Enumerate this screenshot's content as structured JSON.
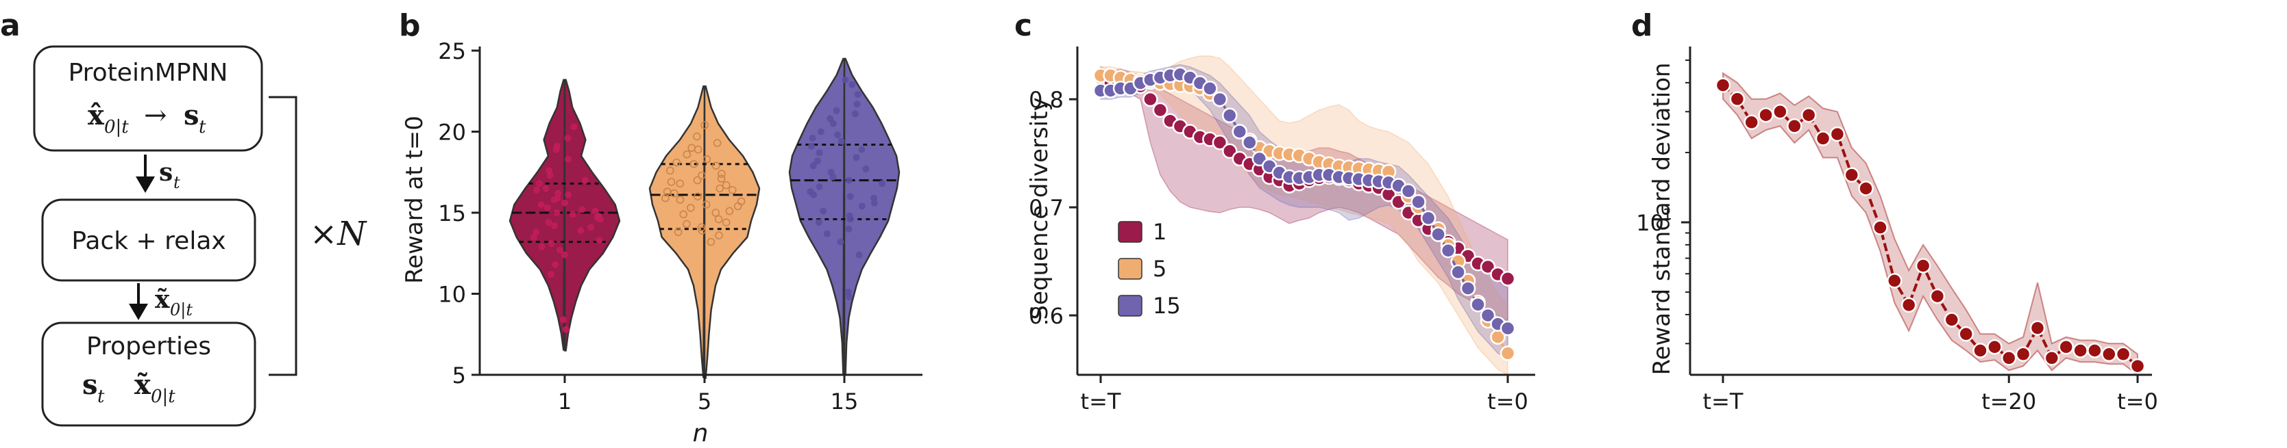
{
  "panel_letters": [
    "a",
    "b",
    "c",
    "d"
  ],
  "colors": {
    "n1": "#9b1b4a",
    "n5": "#f0ad72",
    "n15": "#6f64ad",
    "panel_d": "#9b1010"
  },
  "panel_a": {
    "box1_title": "ProteinMPNN",
    "box1_formula_lhs": "x̂",
    "box1_formula_sub": "0|t",
    "box1_formula_arrow": "→",
    "box1_formula_rhs": "s",
    "box1_formula_rhs_sub": "t",
    "arrow1_label": "s",
    "arrow1_sub": "t",
    "box2_title": "Pack + relax",
    "arrow2_label": "x̃",
    "arrow2_sub": "0|t",
    "box3_title": "Properties",
    "box3_item1": "s",
    "box3_item1_sub": "t",
    "box3_item2": "x̃",
    "box3_item2_sub": "0|t",
    "repeat_label": "×N"
  },
  "chart_data": [
    {
      "panel": "b",
      "type": "violin",
      "title": "",
      "xlabel": "n",
      "ylabel": "Reward at t=0",
      "ylim": [
        5,
        25
      ],
      "yticks": [
        5,
        10,
        15,
        20,
        25
      ],
      "categories": [
        "1",
        "5",
        "15"
      ],
      "series": [
        {
          "name": "1",
          "min": 6.5,
          "max": 23.2,
          "q1": 13.2,
          "median": 15.0,
          "q3": 16.8,
          "profile": [
            [
              6.5,
              0.02
            ],
            [
              7.5,
              0.06
            ],
            [
              8.5,
              0.12
            ],
            [
              9.5,
              0.2
            ],
            [
              10.5,
              0.3
            ],
            [
              11.5,
              0.45
            ],
            [
              12.5,
              0.7
            ],
            [
              13.5,
              0.88
            ],
            [
              14.5,
              1.0
            ],
            [
              15.5,
              0.92
            ],
            [
              16.5,
              0.72
            ],
            [
              17.5,
              0.5
            ],
            [
              18.5,
              0.3
            ],
            [
              19.5,
              0.38
            ],
            [
              20.5,
              0.28
            ],
            [
              21.5,
              0.14
            ],
            [
              22.5,
              0.08
            ],
            [
              23.2,
              0.02
            ]
          ],
          "points": [
            15.1,
            14.8,
            13.5,
            16.2,
            17.0,
            12.9,
            14.2,
            15.6,
            18.3,
            19.1,
            13.8,
            14.6,
            15.9,
            16.5,
            12.4,
            11.8,
            17.6,
            15.2,
            14.4,
            13.1,
            16.8,
            20.3,
            15.5,
            14.1,
            12.7,
            18.9,
            16.1,
            15.8,
            13.9,
            14.9,
            11.2,
            17.3,
            15.0,
            16.4,
            13.3,
            8.4,
            7.8,
            19.6,
            14.7,
            15.3
          ]
        },
        {
          "name": "5",
          "min": 4.8,
          "max": 22.8,
          "q1": 14.0,
          "median": 16.1,
          "q3": 18.0,
          "profile": [
            [
              4.8,
              0.02
            ],
            [
              6.0,
              0.05
            ],
            [
              7.5,
              0.08
            ],
            [
              9.0,
              0.12
            ],
            [
              10.5,
              0.2
            ],
            [
              11.5,
              0.3
            ],
            [
              12.5,
              0.52
            ],
            [
              13.5,
              0.78
            ],
            [
              14.5,
              0.85
            ],
            [
              15.5,
              0.95
            ],
            [
              16.5,
              1.0
            ],
            [
              17.5,
              0.88
            ],
            [
              18.5,
              0.7
            ],
            [
              19.5,
              0.45
            ],
            [
              20.5,
              0.25
            ],
            [
              21.5,
              0.12
            ],
            [
              22.8,
              0.02
            ]
          ],
          "points": [
            16.2,
            15.1,
            17.4,
            18.1,
            14.3,
            13.8,
            16.7,
            19.0,
            15.5,
            17.9,
            14.9,
            16.0,
            18.6,
            13.2,
            15.8,
            17.1,
            16.4,
            19.7,
            14.6,
            15.3,
            16.9,
            18.3,
            13.9,
            17.6,
            15.0,
            16.5,
            20.4,
            14.1,
            17.0,
            15.7,
            18.9,
            16.3,
            14.4,
            19.3,
            15.9,
            17.3,
            16.8,
            13.6,
            18.0,
            15.4
          ]
        },
        {
          "name": "15",
          "min": 5.0,
          "max": 24.5,
          "q1": 14.6,
          "median": 17.0,
          "q3": 19.2,
          "profile": [
            [
              5.0,
              0.02
            ],
            [
              7.0,
              0.04
            ],
            [
              8.5,
              0.08
            ],
            [
              9.5,
              0.14
            ],
            [
              10.5,
              0.22
            ],
            [
              11.5,
              0.32
            ],
            [
              12.5,
              0.48
            ],
            [
              13.5,
              0.65
            ],
            [
              14.5,
              0.8
            ],
            [
              15.5,
              0.88
            ],
            [
              16.5,
              0.96
            ],
            [
              17.5,
              1.0
            ],
            [
              18.5,
              0.95
            ],
            [
              19.5,
              0.82
            ],
            [
              20.5,
              0.68
            ],
            [
              21.5,
              0.52
            ],
            [
              22.5,
              0.32
            ],
            [
              23.5,
              0.14
            ],
            [
              24.5,
              0.02
            ]
          ],
          "points": [
            17.2,
            15.4,
            19.8,
            21.1,
            14.0,
            16.3,
            18.7,
            22.3,
            13.2,
            17.9,
            20.5,
            15.9,
            16.8,
            19.1,
            12.4,
            18.2,
            14.8,
            21.7,
            16.1,
            17.5,
            20.0,
            15.1,
            18.9,
            13.7,
            22.9,
            16.6,
            19.4,
            17.0,
            14.4,
            21.3,
            18.4,
            15.6,
            20.8,
            16.0,
            19.6,
            23.2,
            10.1,
            9.8,
            17.7,
            14.6
          ]
        }
      ]
    },
    {
      "panel": "c",
      "type": "line",
      "title": "",
      "xlabel": "",
      "ylabel": "Sequence diversity",
      "ylim": [
        0.545,
        0.845
      ],
      "yticks": [
        0.6,
        0.7,
        0.8
      ],
      "xticks": [
        "t=T",
        "t=0"
      ],
      "legend": [
        "1",
        "5",
        "15"
      ],
      "legend_position": "lower-left",
      "series": [
        {
          "name": "1",
          "values": [
            0.82,
            0.815,
            0.818,
            0.815,
            0.812,
            0.8,
            0.79,
            0.78,
            0.775,
            0.77,
            0.765,
            0.763,
            0.76,
            0.752,
            0.745,
            0.74,
            0.735,
            0.728,
            0.725,
            0.72,
            0.722,
            0.725,
            0.727,
            0.728,
            0.727,
            0.725,
            0.722,
            0.72,
            0.718,
            0.712,
            0.705,
            0.695,
            0.688,
            0.68,
            0.675,
            0.668,
            0.662,
            0.655,
            0.648,
            0.645,
            0.638,
            0.634
          ],
          "upper": [
            0.83,
            0.825,
            0.828,
            0.825,
            0.822,
            0.815,
            0.81,
            0.805,
            0.8,
            0.795,
            0.79,
            0.785,
            0.78,
            0.775,
            0.77,
            0.765,
            0.76,
            0.755,
            0.752,
            0.75,
            0.75,
            0.752,
            0.755,
            0.755,
            0.752,
            0.75,
            0.745,
            0.74,
            0.735,
            0.73,
            0.725,
            0.72,
            0.715,
            0.71,
            0.705,
            0.7,
            0.695,
            0.69,
            0.685,
            0.68,
            0.675,
            0.67
          ],
          "lower": [
            0.81,
            0.805,
            0.808,
            0.805,
            0.8,
            0.76,
            0.73,
            0.715,
            0.705,
            0.7,
            0.698,
            0.696,
            0.695,
            0.698,
            0.7,
            0.7,
            0.698,
            0.695,
            0.69,
            0.685,
            0.688,
            0.69,
            0.695,
            0.698,
            0.7,
            0.698,
            0.695,
            0.69,
            0.685,
            0.68,
            0.675,
            0.665,
            0.655,
            0.645,
            0.635,
            0.628,
            0.62,
            0.615,
            0.61,
            0.605,
            0.6,
            0.595
          ]
        },
        {
          "name": "5",
          "values": [
            0.822,
            0.822,
            0.82,
            0.818,
            0.817,
            0.816,
            0.815,
            0.814,
            0.813,
            0.812,
            0.81,
            0.805,
            0.8,
            0.785,
            0.77,
            0.762,
            0.755,
            0.752,
            0.75,
            0.749,
            0.748,
            0.745,
            0.742,
            0.74,
            0.738,
            0.737,
            0.736,
            0.735,
            0.734,
            0.733,
            0.72,
            0.71,
            0.7,
            0.69,
            0.68,
            0.665,
            0.65,
            0.632,
            0.612,
            0.595,
            0.58,
            0.565
          ],
          "upper": [
            0.83,
            0.83,
            0.828,
            0.826,
            0.825,
            0.824,
            0.825,
            0.83,
            0.835,
            0.838,
            0.84,
            0.84,
            0.838,
            0.83,
            0.82,
            0.81,
            0.8,
            0.79,
            0.78,
            0.778,
            0.78,
            0.785,
            0.79,
            0.793,
            0.795,
            0.79,
            0.78,
            0.775,
            0.772,
            0.77,
            0.765,
            0.76,
            0.75,
            0.74,
            0.725,
            0.71,
            0.69,
            0.67,
            0.65,
            0.635,
            0.62,
            0.61
          ],
          "lower": [
            0.815,
            0.815,
            0.812,
            0.81,
            0.81,
            0.808,
            0.805,
            0.795,
            0.785,
            0.775,
            0.765,
            0.76,
            0.752,
            0.745,
            0.738,
            0.73,
            0.72,
            0.715,
            0.712,
            0.71,
            0.708,
            0.705,
            0.703,
            0.7,
            0.698,
            0.695,
            0.693,
            0.69,
            0.688,
            0.685,
            0.675,
            0.665,
            0.65,
            0.64,
            0.63,
            0.615,
            0.6,
            0.585,
            0.57,
            0.56,
            0.55,
            0.545
          ]
        },
        {
          "name": "15",
          "values": [
            0.808,
            0.808,
            0.81,
            0.81,
            0.815,
            0.818,
            0.82,
            0.822,
            0.823,
            0.82,
            0.815,
            0.81,
            0.8,
            0.785,
            0.77,
            0.76,
            0.745,
            0.738,
            0.732,
            0.728,
            0.727,
            0.728,
            0.73,
            0.73,
            0.728,
            0.727,
            0.726,
            0.725,
            0.724,
            0.723,
            0.72,
            0.715,
            0.705,
            0.69,
            0.675,
            0.66,
            0.64,
            0.625,
            0.61,
            0.6,
            0.592,
            0.588
          ],
          "upper": [
            0.815,
            0.815,
            0.818,
            0.818,
            0.822,
            0.826,
            0.828,
            0.83,
            0.832,
            0.83,
            0.826,
            0.822,
            0.815,
            0.805,
            0.795,
            0.785,
            0.77,
            0.762,
            0.755,
            0.75,
            0.748,
            0.745,
            0.742,
            0.74,
            0.738,
            0.742,
            0.745,
            0.745,
            0.742,
            0.74,
            0.738,
            0.73,
            0.72,
            0.71,
            0.7,
            0.69,
            0.675,
            0.66,
            0.648,
            0.64,
            0.632,
            0.625
          ],
          "lower": [
            0.8,
            0.8,
            0.802,
            0.802,
            0.806,
            0.81,
            0.812,
            0.814,
            0.815,
            0.81,
            0.8,
            0.79,
            0.775,
            0.76,
            0.745,
            0.73,
            0.718,
            0.712,
            0.706,
            0.702,
            0.7,
            0.7,
            0.7,
            0.698,
            0.695,
            0.688,
            0.69,
            0.695,
            0.7,
            0.702,
            0.698,
            0.69,
            0.68,
            0.665,
            0.65,
            0.635,
            0.615,
            0.6,
            0.585,
            0.575,
            0.565,
            0.56
          ]
        }
      ]
    },
    {
      "panel": "d",
      "type": "line",
      "title": "",
      "xlabel": "",
      "ylabel": "Reward standard deviation",
      "yscale": "log",
      "ylim": [
        2.2,
        55
      ],
      "yticks": [
        10
      ],
      "ytick_labels": [
        "10^1"
      ],
      "xlim": [
        -0.5,
        29.5
      ],
      "xticks": [
        0,
        20,
        29
      ],
      "xtick_labels": [
        "t=T",
        "t=20",
        "t=0"
      ],
      "x": [
        0,
        1,
        2,
        3,
        4,
        5,
        6,
        7,
        8,
        9,
        10,
        11,
        12,
        13,
        14,
        15,
        16,
        17,
        18,
        19,
        20,
        21,
        22,
        23,
        24,
        25,
        26,
        27,
        28,
        29
      ],
      "values": [
        39,
        34,
        27,
        29,
        30,
        26,
        29,
        23,
        24,
        16,
        14,
        9.5,
        5.6,
        4.4,
        6.5,
        4.8,
        3.8,
        3.3,
        2.8,
        2.9,
        2.6,
        2.7,
        3.5,
        2.6,
        2.9,
        2.8,
        2.8,
        2.7,
        2.7,
        2.4
      ],
      "upper": [
        44,
        40,
        34,
        34,
        36,
        32,
        35,
        31,
        30,
        21,
        18,
        13,
        8.5,
        6.2,
        8.0,
        6.5,
        5.2,
        4.2,
        3.3,
        3.3,
        3.0,
        3.2,
        5.5,
        3.0,
        3.2,
        3.1,
        3.1,
        3.0,
        3.0,
        2.7
      ],
      "lower": [
        34,
        29,
        23,
        25,
        26,
        22,
        25,
        19,
        19,
        13,
        11,
        7.5,
        4.5,
        3.4,
        4.8,
        3.8,
        3.1,
        2.8,
        2.5,
        2.55,
        2.3,
        2.4,
        2.8,
        2.3,
        2.6,
        2.5,
        2.5,
        2.45,
        2.45,
        2.2
      ]
    }
  ]
}
